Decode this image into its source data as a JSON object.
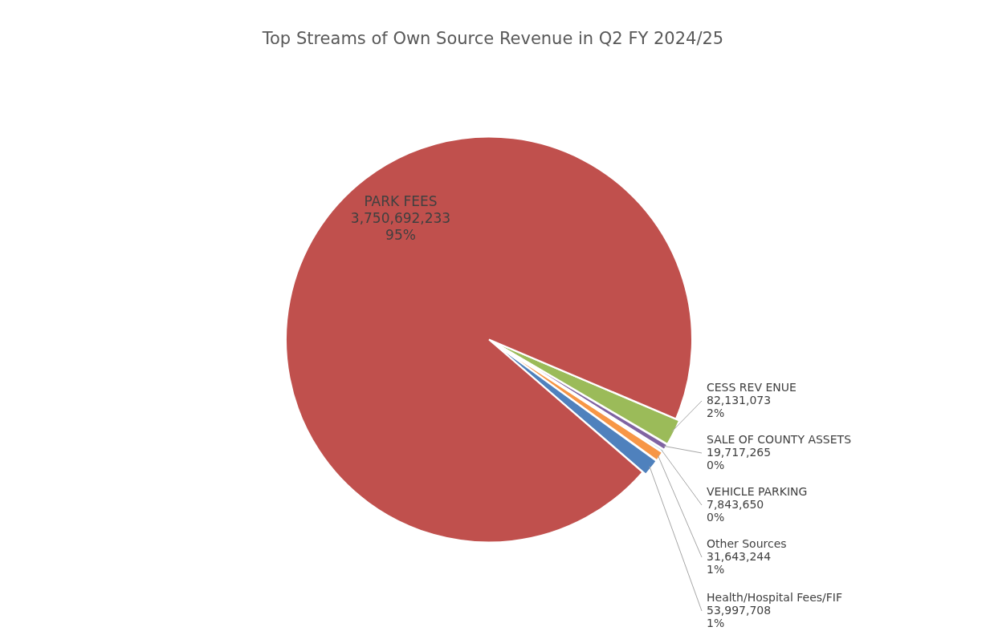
{
  "chart_data": {
    "type": "pie",
    "title": "Top Streams of Own Source Revenue in  Q2 FY 2024/25",
    "categories": [
      "CESS REV ENUE",
      "SALE OF COUNTY ASSETS",
      "VEHICLE PARKING",
      "Other Sources",
      "Health/Hospital Fees/FIF",
      "PARK FEES"
    ],
    "values": [
      82131073,
      19717265,
      7843650,
      31643244,
      53997708,
      3750692233
    ],
    "colors": [
      "#9bbb59",
      "#8064a2",
      "#4bacc6",
      "#f79646",
      "#4f81bd",
      "#c0504d"
    ],
    "value_labels": [
      "82,131,073\n2%",
      "19,717,265\n0%",
      "7,843,650\n0%",
      "31,643,244\n1%",
      "53,997,708\n1%",
      "3,750,692,233\n95%"
    ]
  }
}
